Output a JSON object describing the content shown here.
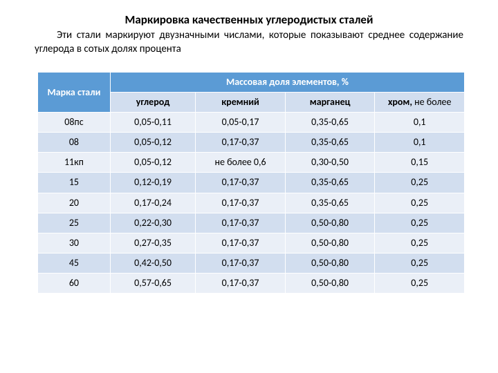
{
  "title": "Маркировка качественных углеродистых сталей",
  "intro": "Эти стали маркируют двузначными числами, которые показывают среднее содержание углерода в сотых долях процента",
  "table": {
    "header_main_left": "Марка стали",
    "header_main_right": "Массовая доля элементов, %",
    "subheaders": {
      "c1": "углерод",
      "c2": "кремний",
      "c3": "марганец",
      "c4_bold": "хром,",
      "c4_rest": " не более"
    },
    "rows": [
      {
        "grade": "08пс",
        "carbon": "0,05-0,11",
        "silicon": "0,05-0,17",
        "manganese": "0,35-0,65",
        "chromium": "0,1"
      },
      {
        "grade": "08",
        "carbon": "0,05-0,12",
        "silicon": "0,17-0,37",
        "manganese": "0,35-0,65",
        "chromium": "0,1"
      },
      {
        "grade": "11кп",
        "carbon": "0,05-0,12",
        "silicon": "не более 0,6",
        "manganese": "0,30-0,50",
        "chromium": "0,15"
      },
      {
        "grade": "15",
        "carbon": "0,12-0,19",
        "silicon": "0,17-0,37",
        "manganese": "0,35-0,65",
        "chromium": "0,25"
      },
      {
        "grade": "20",
        "carbon": "0,17-0,24",
        "silicon": "0,17-0,37",
        "manganese": "0,35-0,65",
        "chromium": "0,25"
      },
      {
        "grade": "25",
        "carbon": "0,22-0,30",
        "silicon": "0,17-0,37",
        "manganese": "0,50-0,80",
        "chromium": "0,25"
      },
      {
        "grade": "30",
        "carbon": "0,27-0,35",
        "silicon": "0,17-0,37",
        "manganese": "0,50-0,80",
        "chromium": "0,25"
      },
      {
        "grade": "45",
        "carbon": "0,42-0,50",
        "silicon": "0,17-0,37",
        "manganese": "0,50-0,80",
        "chromium": "0,25"
      },
      {
        "grade": "60",
        "carbon": "0,57-0,65",
        "silicon": "0,17-0,37",
        "manganese": "0,50-0,80",
        "chromium": "0,25"
      }
    ],
    "colors": {
      "header_blue": "#5b9bd5",
      "band_light": "#eaeff7",
      "band_dark": "#d2deef",
      "border": "#ffffff",
      "text_header": "#ffffff",
      "text_body": "#000000"
    }
  }
}
